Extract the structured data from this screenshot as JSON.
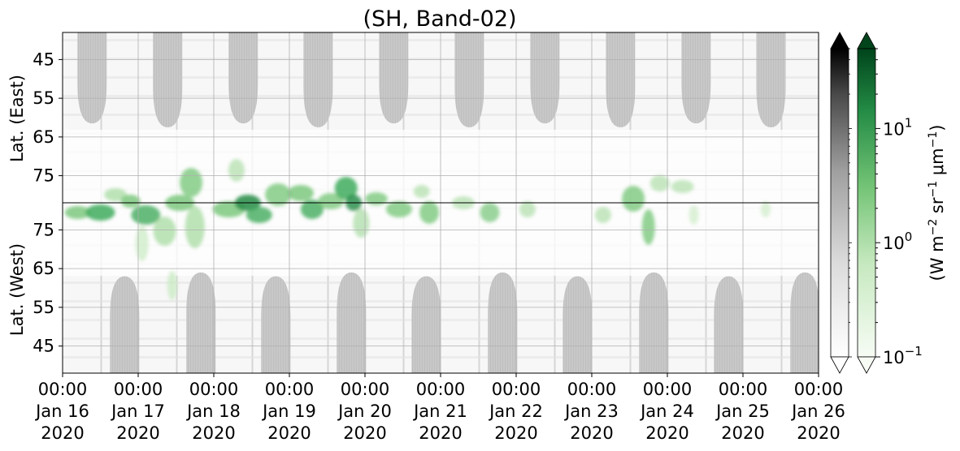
{
  "chart_data": {
    "type": "heatmap",
    "title": "(SH, Band-02)",
    "x_ticks": [
      {
        "time": "00:00",
        "date": "Jan 16",
        "year": "2020"
      },
      {
        "time": "00:00",
        "date": "Jan 17",
        "year": "2020"
      },
      {
        "time": "00:00",
        "date": "Jan 18",
        "year": "2020"
      },
      {
        "time": "00:00",
        "date": "Jan 19",
        "year": "2020"
      },
      {
        "time": "00:00",
        "date": "Jan 20",
        "year": "2020"
      },
      {
        "time": "00:00",
        "date": "Jan 21",
        "year": "2020"
      },
      {
        "time": "00:00",
        "date": "Jan 22",
        "year": "2020"
      },
      {
        "time": "00:00",
        "date": "Jan 23",
        "year": "2020"
      },
      {
        "time": "00:00",
        "date": "Jan 24",
        "year": "2020"
      },
      {
        "time": "00:00",
        "date": "Jan 25",
        "year": "2020"
      },
      {
        "time": "00:00",
        "date": "Jan 26",
        "year": "2020"
      }
    ],
    "xlim": [
      "2020-01-16T00:00",
      "2020-01-26T00:00"
    ],
    "panels": [
      {
        "ylabel": "Lat. (East)",
        "yticks": [
          45,
          55,
          65,
          75
        ],
        "ylim_top_to_bottom": [
          38,
          82
        ]
      },
      {
        "ylabel": "Lat. (West)",
        "yticks": [
          75,
          65,
          55,
          45
        ],
        "ylim_top_to_bottom": [
          82,
          38
        ]
      }
    ],
    "grid": true,
    "colorbars": [
      {
        "cmap": "Greys",
        "extend": "both",
        "scale": "log"
      },
      {
        "cmap": "Greens",
        "extend": "both",
        "scale": "log",
        "ticks": [
          {
            "base": "10",
            "exp": "1",
            "value": 10
          },
          {
            "base": "10",
            "exp": "0",
            "value": 1
          },
          {
            "base": "10",
            "exp": "−1",
            "value": 0.1
          }
        ],
        "range": [
          0.1,
          50
        ]
      }
    ],
    "colorbar_label": {
      "prefix": "(W m",
      "e1": "−2",
      "mid1": " sr",
      "e2": "−1",
      "mid2": " μm",
      "e3": "−1",
      "suffix": ")"
    }
  }
}
